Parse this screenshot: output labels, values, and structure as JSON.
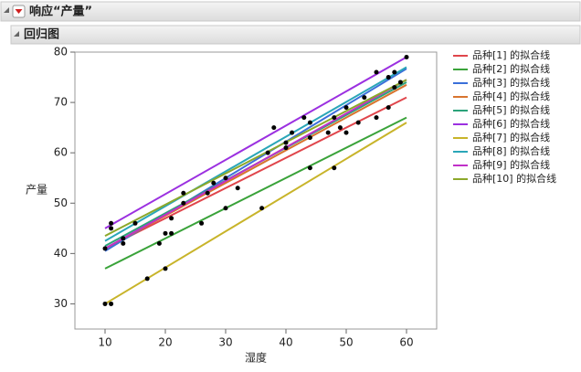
{
  "header": {
    "title": "响应“产量”"
  },
  "section": {
    "title": "回归图"
  },
  "chart_data": {
    "type": "scatter",
    "x_label": "湿度",
    "y_label": "产量",
    "xlim": [
      5,
      65
    ],
    "ylim": [
      25,
      80
    ],
    "xticks": [
      10,
      20,
      30,
      40,
      50,
      60
    ],
    "yticks": [
      30,
      40,
      50,
      60,
      70,
      80
    ],
    "grid": false,
    "points": {
      "color": "#000000",
      "x": [
        10,
        10,
        11,
        11,
        11,
        13,
        13,
        15,
        17,
        19,
        20,
        20,
        21,
        21,
        23,
        23,
        26,
        27,
        28,
        30,
        30,
        32,
        36,
        37,
        38,
        40,
        40,
        41,
        43,
        44,
        44,
        44,
        47,
        48,
        48,
        49,
        50,
        50,
        52,
        53,
        55,
        55,
        57,
        57,
        58,
        58,
        60,
        59
      ],
      "y": [
        41,
        30,
        46,
        45,
        30,
        42,
        43,
        46,
        35,
        42,
        44,
        37,
        47,
        44,
        52,
        50,
        46,
        52,
        54,
        55,
        49,
        53,
        49,
        60,
        65,
        61,
        62,
        64,
        67,
        66,
        63,
        57,
        64,
        67,
        57,
        65,
        69,
        64,
        66,
        71,
        76,
        67,
        69,
        75,
        76,
        73,
        79,
        74
      ]
    },
    "series": [
      {
        "name": "品种[1] 的拟合线",
        "color": "#e0464c",
        "x": [
          10,
          60
        ],
        "values": [
          41,
          71
        ]
      },
      {
        "name": "品种[2] 的拟合线",
        "color": "#3aa33a",
        "x": [
          10,
          60
        ],
        "values": [
          37,
          67
        ]
      },
      {
        "name": "品种[3] 的拟合线",
        "color": "#3b6fd9",
        "x": [
          10,
          60
        ],
        "values": [
          40.5,
          76.7
        ]
      },
      {
        "name": "品种[4] 的拟合线",
        "color": "#d8752f",
        "x": [
          10,
          60
        ],
        "values": [
          41,
          73.5
        ]
      },
      {
        "name": "品种[5] 的拟合线",
        "color": "#2ba37a",
        "x": [
          10,
          60
        ],
        "values": [
          41.5,
          74
        ]
      },
      {
        "name": "品种[6] 的拟合线",
        "color": "#9b30e0",
        "x": [
          10,
          60
        ],
        "values": [
          45,
          79
        ]
      },
      {
        "name": "品种[7] 的拟合线",
        "color": "#c8b42a",
        "x": [
          10,
          60
        ],
        "values": [
          30,
          66
        ]
      },
      {
        "name": "品种[8] 的拟合线",
        "color": "#2aa6b8",
        "x": [
          10,
          60
        ],
        "values": [
          42.5,
          77
        ]
      },
      {
        "name": "品种[9] 的拟合线",
        "color": "#c030c8",
        "x": [
          10,
          60
        ],
        "values": [
          41,
          74.5
        ]
      },
      {
        "name": "品种[10] 的拟合线",
        "color": "#8ca82a",
        "x": [
          10,
          60
        ],
        "values": [
          43.5,
          74.5
        ]
      }
    ]
  }
}
